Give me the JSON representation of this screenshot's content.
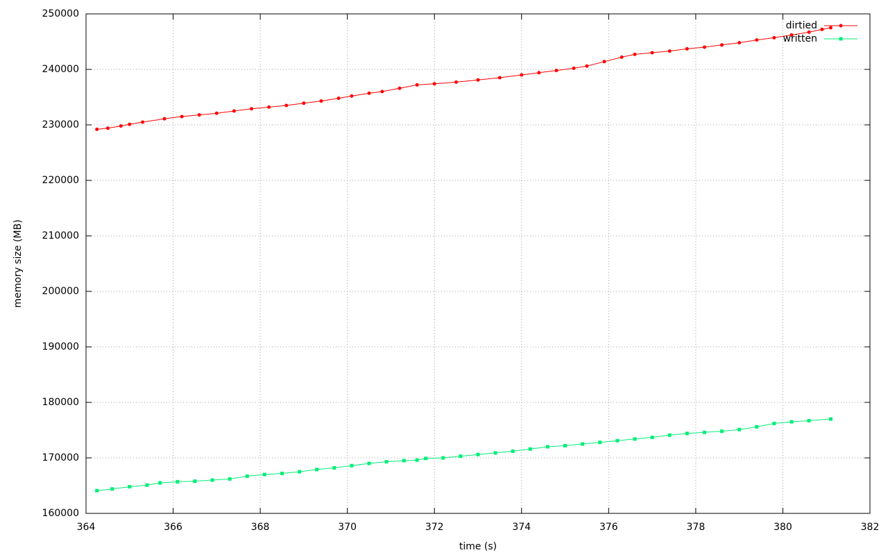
{
  "chart_data": {
    "type": "line",
    "xlabel": "time (s)",
    "ylabel": "memory size (MB)",
    "xlim": [
      364,
      382
    ],
    "xticks": [
      364,
      366,
      368,
      370,
      372,
      374,
      376,
      378,
      380,
      382
    ],
    "ylim": [
      160000,
      250000
    ],
    "yticks": [
      160000,
      170000,
      180000,
      190000,
      200000,
      210000,
      220000,
      230000,
      240000,
      250000
    ],
    "grid": true,
    "legend": "top-right",
    "series": [
      {
        "name": "dirtied",
        "color": "#ff0000",
        "marker": "circle",
        "x": [
          364.25,
          364.5,
          364.8,
          365.0,
          365.3,
          365.8,
          366.2,
          366.6,
          367.0,
          367.4,
          367.8,
          368.2,
          368.6,
          369.0,
          369.4,
          369.8,
          370.1,
          370.5,
          370.8,
          371.2,
          371.6,
          372.0,
          372.5,
          373.0,
          373.5,
          374.0,
          374.4,
          374.8,
          375.2,
          375.5,
          375.9,
          376.3,
          376.6,
          377.0,
          377.4,
          377.8,
          378.2,
          378.6,
          379.0,
          379.4,
          379.8,
          380.2,
          380.6,
          380.9,
          381.1
        ],
        "values": [
          229200,
          229400,
          229800,
          230100,
          230500,
          231100,
          231500,
          231800,
          232100,
          232500,
          232900,
          233200,
          233500,
          233900,
          234300,
          234800,
          235200,
          235700,
          236000,
          236600,
          237200,
          237400,
          237700,
          238100,
          238500,
          239000,
          239400,
          239800,
          240200,
          240600,
          241400,
          242200,
          242700,
          243000,
          243300,
          243700,
          244000,
          244400,
          244800,
          245300,
          245700,
          246200,
          246700,
          247200,
          247500
        ]
      },
      {
        "name": "written",
        "color": "#00ee77",
        "marker": "square",
        "x": [
          364.25,
          364.6,
          365.0,
          365.4,
          365.7,
          366.1,
          366.5,
          366.9,
          367.3,
          367.7,
          368.1,
          368.5,
          368.9,
          369.3,
          369.7,
          370.1,
          370.5,
          370.9,
          371.3,
          371.6,
          371.8,
          372.2,
          372.6,
          373.0,
          373.4,
          373.8,
          374.2,
          374.6,
          375.0,
          375.4,
          375.8,
          376.2,
          376.6,
          377.0,
          377.4,
          377.8,
          378.2,
          378.6,
          379.0,
          379.4,
          379.8,
          380.2,
          380.6,
          381.1
        ],
        "values": [
          164100,
          164400,
          164800,
          165100,
          165500,
          165700,
          165800,
          166000,
          166200,
          166700,
          167000,
          167200,
          167500,
          167900,
          168200,
          168600,
          169000,
          169300,
          169500,
          169600,
          169900,
          170000,
          170300,
          170600,
          170900,
          171200,
          171600,
          172000,
          172200,
          172500,
          172800,
          173100,
          173400,
          173700,
          174100,
          174400,
          174600,
          174800,
          175100,
          175600,
          176200,
          176500,
          176700,
          177000
        ]
      }
    ]
  }
}
